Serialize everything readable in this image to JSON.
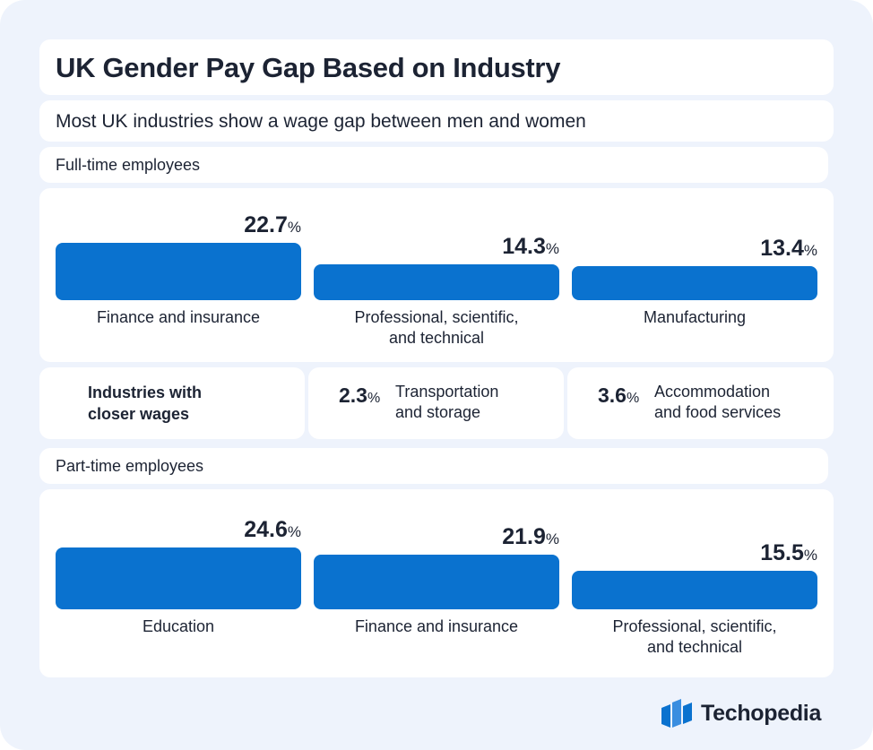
{
  "title": "UK Gender Pay Gap Based on Industry",
  "subtitle": "Most UK industries show a wage gap between men and women",
  "pct_symbol": "%",
  "chart_data": [
    {
      "type": "bar",
      "title": "Full-time employees",
      "categories": [
        "Finance and insurance",
        "Professional, scientific, and technical",
        "Manufacturing"
      ],
      "values": [
        22.7,
        14.3,
        13.4
      ],
      "unit": "%"
    },
    {
      "type": "bar",
      "title": "Part-time employees",
      "categories": [
        "Education",
        "Finance and insurance",
        "Professional, scientific, and technical"
      ],
      "values": [
        24.6,
        21.9,
        15.5
      ],
      "unit": "%"
    }
  ],
  "closer_wages": {
    "heading_line1": "Industries with",
    "heading_line2": "closer wages",
    "items": [
      {
        "value": "2.3",
        "label_line1": "Transportation",
        "label_line2": "and storage"
      },
      {
        "value": "3.6",
        "label_line1": "Accommodation",
        "label_line2": "and food services"
      }
    ]
  },
  "labels": {
    "ft": [
      [
        "Finance and insurance"
      ],
      [
        "Professional, scientific,",
        "and technical"
      ],
      [
        "Manufacturing"
      ]
    ],
    "pt": [
      [
        "Education"
      ],
      [
        "Finance and insurance"
      ],
      [
        "Professional, scientific,",
        "and technical"
      ]
    ]
  },
  "display_values": {
    "ft": [
      "22.7",
      "14.3",
      "13.4"
    ],
    "pt": [
      "24.6",
      "21.9",
      "15.5"
    ]
  },
  "brand": {
    "name": "Techopedia",
    "icon": "techopedia-logo-icon",
    "color": "#0a72cf"
  },
  "colors": {
    "bar": "#0a72cf",
    "background": "#eef3fc",
    "text": "#1c2333"
  }
}
